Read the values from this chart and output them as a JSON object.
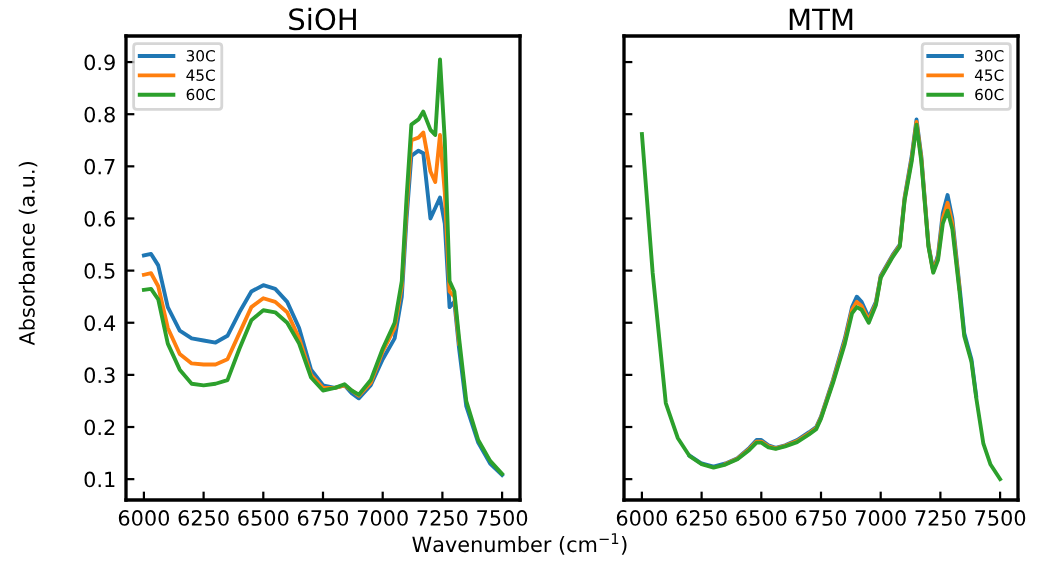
{
  "chart_data": [
    {
      "type": "line",
      "title": "SiOH",
      "xlabel": "Wavenumber (cm$^{−1}$)",
      "ylabel": "Absorbance (a.u.)",
      "xlim": [
        5925,
        7575
      ],
      "ylim": [
        0.06,
        0.95
      ],
      "xticks": [
        6000,
        6250,
        6500,
        6750,
        7000,
        7250,
        7500
      ],
      "yticks": [
        0.1,
        0.2,
        0.3,
        0.4,
        0.5,
        0.6,
        0.7,
        0.8,
        0.9
      ],
      "legend": "top left",
      "grid": false,
      "x": [
        6000,
        6030,
        6060,
        6100,
        6150,
        6200,
        6250,
        6300,
        6350,
        6400,
        6450,
        6500,
        6550,
        6600,
        6650,
        6700,
        6750,
        6800,
        6840,
        6870,
        6900,
        6950,
        7000,
        7050,
        7080,
        7100,
        7120,
        7150,
        7170,
        7200,
        7220,
        7240,
        7260,
        7280,
        7300,
        7320,
        7350,
        7400,
        7450,
        7500
      ],
      "series": [
        {
          "name": "30C",
          "color": "#1f77b4",
          "values": [
            0.529,
            0.532,
            0.51,
            0.43,
            0.385,
            0.37,
            0.366,
            0.362,
            0.375,
            0.42,
            0.46,
            0.472,
            0.465,
            0.44,
            0.39,
            0.31,
            0.28,
            0.275,
            0.28,
            0.265,
            0.255,
            0.28,
            0.33,
            0.37,
            0.45,
            0.6,
            0.72,
            0.73,
            0.725,
            0.6,
            0.62,
            0.64,
            0.59,
            0.43,
            0.44,
            0.35,
            0.24,
            0.17,
            0.13,
            0.108
          ]
        },
        {
          "name": "45C",
          "color": "#ff7f0e",
          "values": [
            0.492,
            0.495,
            0.47,
            0.39,
            0.34,
            0.322,
            0.32,
            0.32,
            0.33,
            0.38,
            0.43,
            0.447,
            0.44,
            0.42,
            0.37,
            0.3,
            0.275,
            0.275,
            0.28,
            0.27,
            0.26,
            0.285,
            0.345,
            0.39,
            0.47,
            0.62,
            0.75,
            0.755,
            0.765,
            0.69,
            0.67,
            0.76,
            0.65,
            0.46,
            0.45,
            0.36,
            null,
            null,
            null,
            null
          ]
        },
        {
          "name": "60C",
          "color": "#2ca02c",
          "values": [
            0.463,
            0.465,
            0.445,
            0.36,
            0.31,
            0.283,
            0.28,
            0.283,
            0.29,
            0.35,
            0.405,
            0.424,
            0.42,
            0.4,
            0.36,
            0.295,
            0.27,
            0.275,
            0.282,
            0.27,
            0.262,
            0.29,
            0.35,
            0.4,
            0.48,
            0.64,
            0.78,
            0.79,
            0.805,
            0.77,
            0.76,
            0.905,
            0.75,
            0.48,
            0.46,
            0.37,
            0.25,
            0.175,
            0.135,
            0.11
          ]
        }
      ]
    },
    {
      "type": "line",
      "title": "MTM",
      "xlim": [
        5925,
        7575
      ],
      "ylim": [
        0.06,
        0.95
      ],
      "xticks": [
        6000,
        6250,
        6500,
        6750,
        7000,
        7250,
        7500
      ],
      "yticks": [
        0.1,
        0.2,
        0.3,
        0.4,
        0.5,
        0.6,
        0.7,
        0.8,
        0.9
      ],
      "tick_labels": "x",
      "legend": "top right",
      "grid": false,
      "x": [
        6000,
        6045,
        6100,
        6150,
        6200,
        6250,
        6300,
        6350,
        6400,
        6450,
        6480,
        6500,
        6530,
        6560,
        6600,
        6650,
        6700,
        6730,
        6750,
        6800,
        6850,
        6880,
        6900,
        6920,
        6950,
        6980,
        7000,
        7050,
        7080,
        7100,
        7130,
        7150,
        7170,
        7200,
        7220,
        7240,
        7260,
        7280,
        7300,
        7330,
        7350,
        7380,
        7400,
        7430,
        7460,
        7500
      ],
      "series": [
        {
          "name": "30C",
          "color": "#1f77b4",
          "values": [
            null,
            null,
            null,
            null,
            0.145,
            0.13,
            0.124,
            0.13,
            0.14,
            0.16,
            0.175,
            0.175,
            0.165,
            0.16,
            0.165,
            0.175,
            0.19,
            0.2,
            0.22,
            0.29,
            0.37,
            0.43,
            0.45,
            0.44,
            0.41,
            0.44,
            0.49,
            0.53,
            0.55,
            0.64,
            0.72,
            0.79,
            0.72,
            0.55,
            0.5,
            0.53,
            0.61,
            0.645,
            0.6,
            0.47,
            0.38,
            0.33,
            0.26,
            null,
            null,
            null
          ]
        },
        {
          "name": "45C",
          "color": "#ff7f0e",
          "values": [
            null,
            null,
            null,
            null,
            null,
            null,
            null,
            0.129,
            0.139,
            0.158,
            0.172,
            0.172,
            0.163,
            0.159,
            0.164,
            0.173,
            0.188,
            0.198,
            0.218,
            0.287,
            0.365,
            0.425,
            0.44,
            0.432,
            0.405,
            0.437,
            0.488,
            0.528,
            0.548,
            0.637,
            0.715,
            0.785,
            0.715,
            0.548,
            0.498,
            0.525,
            0.6,
            0.63,
            0.59,
            0.465,
            null,
            null,
            null,
            null,
            null,
            null
          ]
        },
        {
          "name": "60C",
          "color": "#2ca02c",
          "values": [
            0.762,
            0.496,
            0.246,
            0.179,
            0.144,
            0.129,
            0.122,
            0.128,
            0.138,
            0.156,
            0.17,
            0.17,
            0.161,
            0.158,
            0.163,
            0.171,
            0.186,
            0.196,
            0.216,
            0.284,
            0.36,
            0.418,
            0.43,
            0.425,
            0.4,
            0.434,
            0.486,
            0.526,
            0.546,
            0.634,
            0.71,
            0.78,
            0.71,
            0.546,
            0.496,
            0.52,
            0.59,
            0.615,
            0.58,
            0.46,
            0.374,
            0.325,
            0.256,
            0.168,
            0.128,
            0.1
          ]
        }
      ]
    }
  ]
}
